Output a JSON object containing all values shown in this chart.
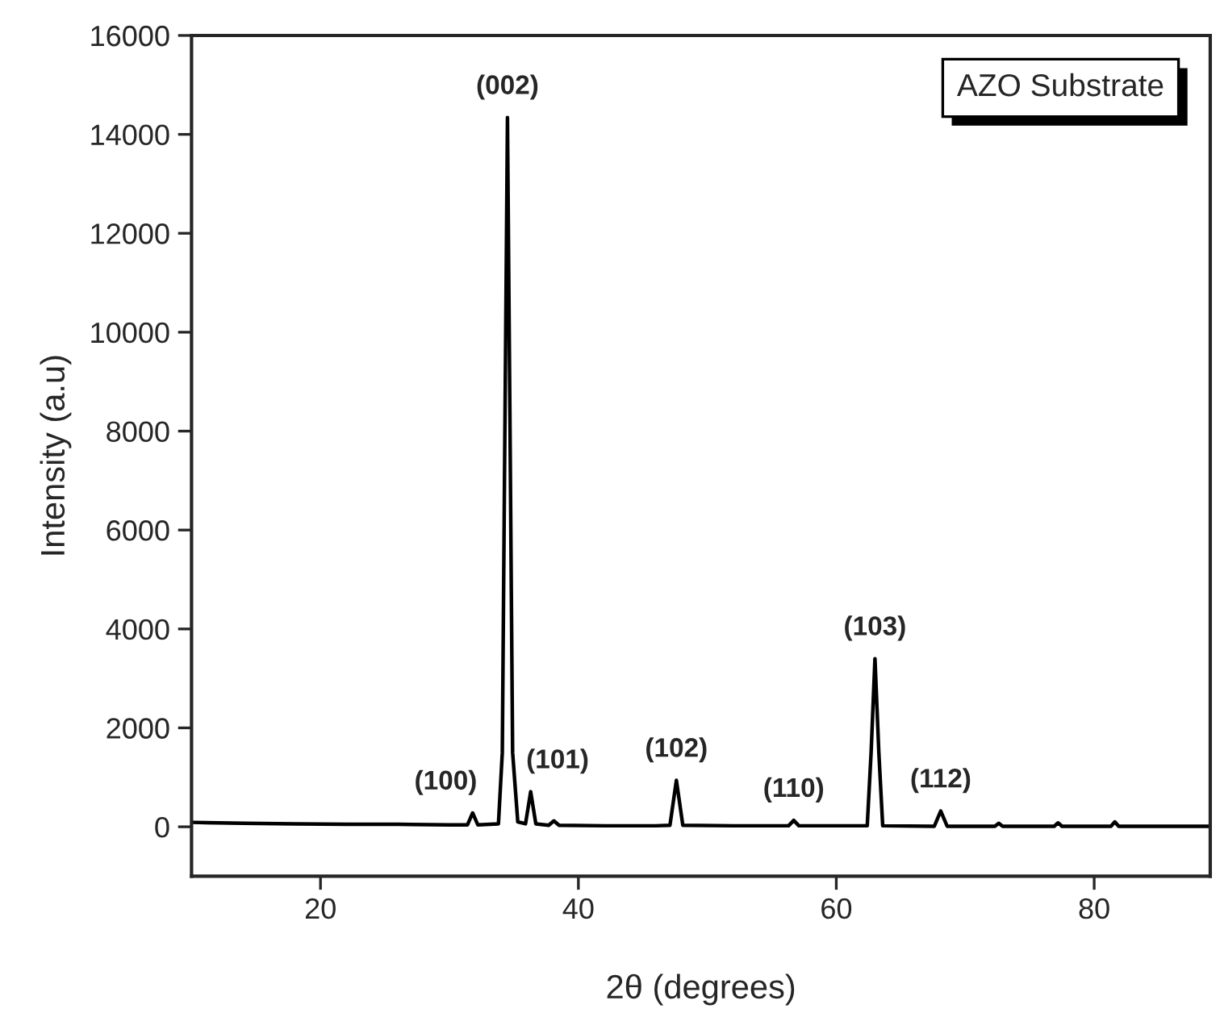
{
  "chart_data": {
    "type": "line",
    "xlabel": "2θ (degrees)",
    "ylabel": "Intensity (a.u)",
    "xlim": [
      10,
      89
    ],
    "xticks": [
      20,
      40,
      60,
      80
    ],
    "ylim": [
      -1000,
      16000
    ],
    "yticks": [
      0,
      2000,
      4000,
      6000,
      8000,
      10000,
      12000,
      14000,
      16000
    ],
    "grid": false,
    "legend": false,
    "series": [
      {
        "color": "#000000",
        "x": [
          10,
          14,
          18,
          22,
          26,
          30,
          31.4,
          31.8,
          32.2,
          33.8,
          34.1,
          34.3,
          34.5,
          34.7,
          34.9,
          35.3,
          35.9,
          36.3,
          36.7,
          37.7,
          38.1,
          38.5,
          42,
          46,
          47.1,
          47.6,
          48.1,
          52,
          56.3,
          56.7,
          57.1,
          62.4,
          62.7,
          63.0,
          63.3,
          63.6,
          67.6,
          68.1,
          68.6,
          72.3,
          72.6,
          72.9,
          76.9,
          77.2,
          77.5,
          81.3,
          81.6,
          81.9,
          89
        ],
        "values": [
          90,
          70,
          60,
          50,
          50,
          40,
          40,
          280,
          40,
          60,
          1500,
          8000,
          14340,
          8000,
          1500,
          100,
          60,
          710,
          60,
          30,
          120,
          30,
          20,
          20,
          30,
          940,
          30,
          20,
          20,
          130,
          20,
          20,
          1500,
          3400,
          1500,
          20,
          10,
          320,
          10,
          10,
          70,
          10,
          10,
          80,
          10,
          10,
          100,
          10,
          10
        ]
      }
    ],
    "annotations": [
      {
        "text": "(100)",
        "x": 31.8,
        "y": 280
      },
      {
        "text": "(002)",
        "x": 34.5,
        "y": 14340
      },
      {
        "text": "(101)",
        "x": 36.3,
        "y": 710
      },
      {
        "text": "(102)",
        "x": 47.6,
        "y": 940
      },
      {
        "text": "(110)",
        "x": 56.7,
        "y": 130
      },
      {
        "text": "(103)",
        "x": 63.0,
        "y": 3400
      },
      {
        "text": "(112)",
        "x": 68.1,
        "y": 320
      },
      "AZO Substrate"
    ]
  }
}
